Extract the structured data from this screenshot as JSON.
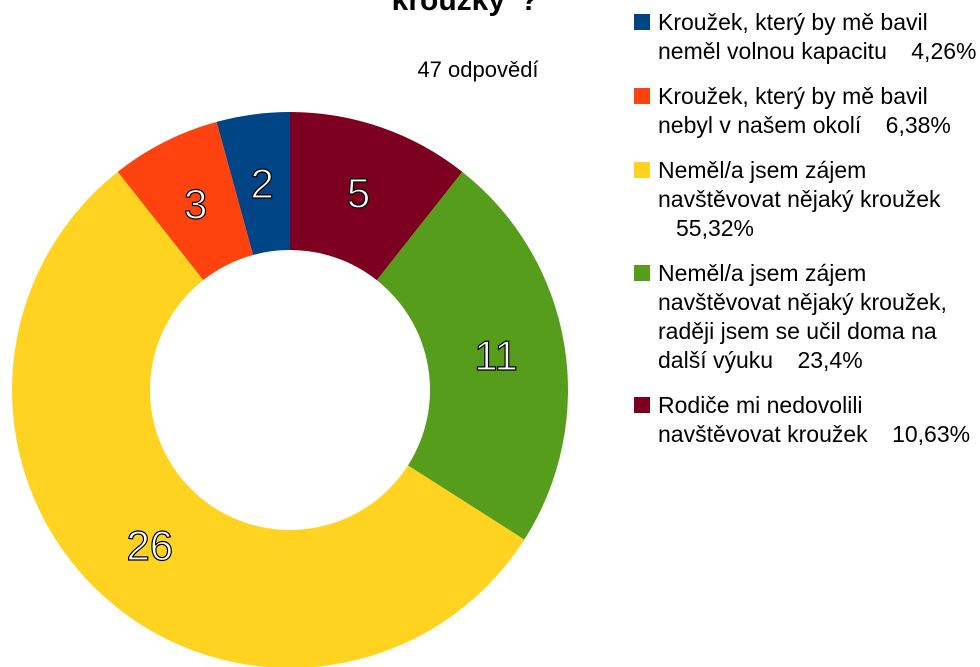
{
  "chart_data": {
    "type": "pie",
    "title": "kroužky“?",
    "subtitle": "47 odpovědí",
    "categories": [
      "Kroužek, který by mě bavil neměl volnou kapacitu",
      "Kroužek, který by mě bavil nebyl v našem okolí",
      "Neměl/a jsem zájem navštěvovat nějaký kroužek",
      "Neměl/a jsem zájem navštěvovat nějaký kroužek, raději jsem se učil doma na další výuku",
      "Rodiče mi nedovolili navštěvovat kroužek"
    ],
    "values": [
      2,
      3,
      26,
      11,
      5
    ],
    "percent_labels": [
      "4,26%",
      "6,38%",
      "55,32%",
      "23,4%",
      "10,63%"
    ],
    "colors": [
      "#004586",
      "#ff420e",
      "#ffd320",
      "#579d1c",
      "#7e0021"
    ]
  }
}
